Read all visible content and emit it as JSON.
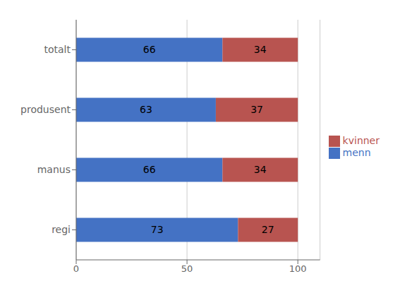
{
  "chart_data": {
    "type": "bar",
    "orientation": "horizontal",
    "stacked": true,
    "categories": [
      "regi",
      "manus",
      "produsent",
      "totalt"
    ],
    "series": [
      {
        "name": "menn",
        "color": "#4472C4",
        "values": [
          73,
          66,
          63,
          66
        ]
      },
      {
        "name": "kvinner",
        "color": "#B85450",
        "values": [
          27,
          34,
          37,
          34
        ]
      }
    ],
    "xlim": [
      0,
      110
    ],
    "xticks": [
      0,
      50,
      100
    ],
    "grid": true,
    "legend": "right",
    "data_labels": true
  }
}
